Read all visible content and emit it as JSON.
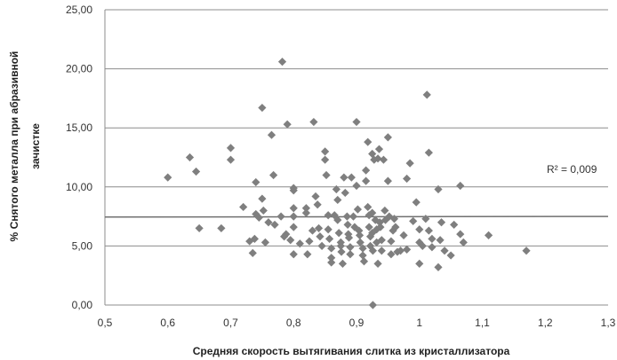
{
  "chart_data": {
    "type": "scatter",
    "xlabel": "Средняя скорость вытягивания слитка из кристаллизатора",
    "ylabel_line1": "% Снятого металла при абразивной",
    "ylabel_line2": "зачистке",
    "xlim": [
      0.5,
      1.3
    ],
    "ylim": [
      0,
      25
    ],
    "x_ticks": [
      "0,5",
      "0,6",
      "0,7",
      "0,8",
      "0,9",
      "1",
      "1,1",
      "1,2",
      "1,3"
    ],
    "y_ticks": [
      "0,00",
      "5,00",
      "10,00",
      "15,00",
      "20,00",
      "25,00"
    ],
    "grid": "horizontal",
    "marker": "diamond",
    "marker_color": "#7f7f7f",
    "trendline": {
      "type": "linear",
      "y_start": 7.45,
      "y_end": 7.5,
      "color": "#707070"
    },
    "r2_label": "R² = 0,009",
    "points": [
      [
        0.6,
        10.8
      ],
      [
        0.635,
        12.5
      ],
      [
        0.645,
        11.3
      ],
      [
        0.65,
        6.5
      ],
      [
        0.685,
        6.5
      ],
      [
        0.7,
        13.3
      ],
      [
        0.7,
        12.3
      ],
      [
        0.72,
        8.3
      ],
      [
        0.73,
        5.4
      ],
      [
        0.735,
        4.4
      ],
      [
        0.738,
        5.6
      ],
      [
        0.74,
        10.4
      ],
      [
        0.74,
        7.7
      ],
      [
        0.745,
        7.4
      ],
      [
        0.75,
        16.7
      ],
      [
        0.75,
        9.0
      ],
      [
        0.752,
        8.0
      ],
      [
        0.755,
        5.3
      ],
      [
        0.76,
        7.0
      ],
      [
        0.765,
        14.4
      ],
      [
        0.768,
        11.0
      ],
      [
        0.77,
        6.8
      ],
      [
        0.78,
        7.5
      ],
      [
        0.782,
        20.6
      ],
      [
        0.785,
        5.8
      ],
      [
        0.788,
        6.0
      ],
      [
        0.79,
        15.3
      ],
      [
        0.795,
        5.5
      ],
      [
        0.8,
        9.7
      ],
      [
        0.8,
        9.9
      ],
      [
        0.8,
        8.2
      ],
      [
        0.8,
        7.5
      ],
      [
        0.8,
        6.6
      ],
      [
        0.8,
        4.3
      ],
      [
        0.81,
        5.2
      ],
      [
        0.82,
        8.2
      ],
      [
        0.82,
        7.8
      ],
      [
        0.822,
        4.3
      ],
      [
        0.825,
        5.4
      ],
      [
        0.83,
        6.3
      ],
      [
        0.832,
        15.5
      ],
      [
        0.835,
        9.2
      ],
      [
        0.838,
        8.5
      ],
      [
        0.84,
        6.5
      ],
      [
        0.842,
        5.8
      ],
      [
        0.845,
        5.0
      ],
      [
        0.85,
        13.0
      ],
      [
        0.85,
        12.3
      ],
      [
        0.852,
        11.0
      ],
      [
        0.855,
        7.6
      ],
      [
        0.855,
        6.4
      ],
      [
        0.857,
        5.6
      ],
      [
        0.86,
        4.8
      ],
      [
        0.86,
        4.0
      ],
      [
        0.86,
        3.6
      ],
      [
        0.865,
        7.6
      ],
      [
        0.868,
        9.8
      ],
      [
        0.87,
        8.9
      ],
      [
        0.87,
        7.2
      ],
      [
        0.872,
        6.1
      ],
      [
        0.875,
        5.3
      ],
      [
        0.875,
        5.0
      ],
      [
        0.876,
        4.5
      ],
      [
        0.878,
        3.5
      ],
      [
        0.88,
        10.8
      ],
      [
        0.882,
        9.5
      ],
      [
        0.885,
        7.5
      ],
      [
        0.886,
        6.8
      ],
      [
        0.887,
        6.0
      ],
      [
        0.888,
        5.7
      ],
      [
        0.89,
        4.9
      ],
      [
        0.89,
        4.3
      ],
      [
        0.892,
        10.8
      ],
      [
        0.895,
        7.5
      ],
      [
        0.897,
        6.6
      ],
      [
        0.9,
        15.5
      ],
      [
        0.9,
        10.1
      ],
      [
        0.902,
        8.1
      ],
      [
        0.904,
        6.3
      ],
      [
        0.905,
        5.9
      ],
      [
        0.906,
        5.3
      ],
      [
        0.91,
        4.8
      ],
      [
        0.91,
        4.2
      ],
      [
        0.912,
        3.7
      ],
      [
        0.915,
        11.4
      ],
      [
        0.915,
        10.5
      ],
      [
        0.918,
        13.8
      ],
      [
        0.918,
        8.3
      ],
      [
        0.92,
        7.6
      ],
      [
        0.92,
        6.6
      ],
      [
        0.922,
        5.8
      ],
      [
        0.922,
        5.0
      ],
      [
        0.925,
        12.8
      ],
      [
        0.925,
        7.8
      ],
      [
        0.925,
        6.1
      ],
      [
        0.926,
        4.6
      ],
      [
        0.926,
        0.0
      ],
      [
        0.928,
        12.3
      ],
      [
        0.93,
        7.2
      ],
      [
        0.932,
        6.4
      ],
      [
        0.932,
        5.3
      ],
      [
        0.934,
        12.4
      ],
      [
        0.934,
        3.5
      ],
      [
        0.936,
        13.2
      ],
      [
        0.937,
        7.0
      ],
      [
        0.938,
        6.6
      ],
      [
        0.94,
        5.5
      ],
      [
        0.94,
        4.6
      ],
      [
        0.943,
        12.3
      ],
      [
        0.945,
        8.0
      ],
      [
        0.946,
        7.2
      ],
      [
        0.95,
        14.2
      ],
      [
        0.95,
        10.5
      ],
      [
        0.952,
        7.5
      ],
      [
        0.955,
        5.4
      ],
      [
        0.955,
        4.3
      ],
      [
        0.958,
        6.3
      ],
      [
        0.96,
        7.3
      ],
      [
        0.962,
        6.6
      ],
      [
        0.965,
        4.5
      ],
      [
        0.97,
        4.6
      ],
      [
        0.975,
        5.9
      ],
      [
        0.98,
        10.7
      ],
      [
        0.98,
        4.7
      ],
      [
        0.985,
        12.0
      ],
      [
        0.99,
        7.1
      ],
      [
        0.995,
        8.7
      ],
      [
        1.0,
        6.4
      ],
      [
        1.0,
        5.3
      ],
      [
        1.0,
        3.5
      ],
      [
        1.005,
        5.0
      ],
      [
        1.01,
        7.3
      ],
      [
        1.012,
        17.8
      ],
      [
        1.015,
        12.9
      ],
      [
        1.015,
        6.3
      ],
      [
        1.02,
        5.6
      ],
      [
        1.02,
        4.9
      ],
      [
        1.03,
        9.8
      ],
      [
        1.03,
        3.2
      ],
      [
        1.033,
        5.5
      ],
      [
        1.035,
        7.0
      ],
      [
        1.04,
        4.6
      ],
      [
        1.05,
        4.2
      ],
      [
        1.055,
        6.8
      ],
      [
        1.065,
        10.1
      ],
      [
        1.065,
        6.0
      ],
      [
        1.07,
        5.3
      ],
      [
        1.11,
        5.9
      ],
      [
        1.17,
        4.6
      ]
    ]
  }
}
